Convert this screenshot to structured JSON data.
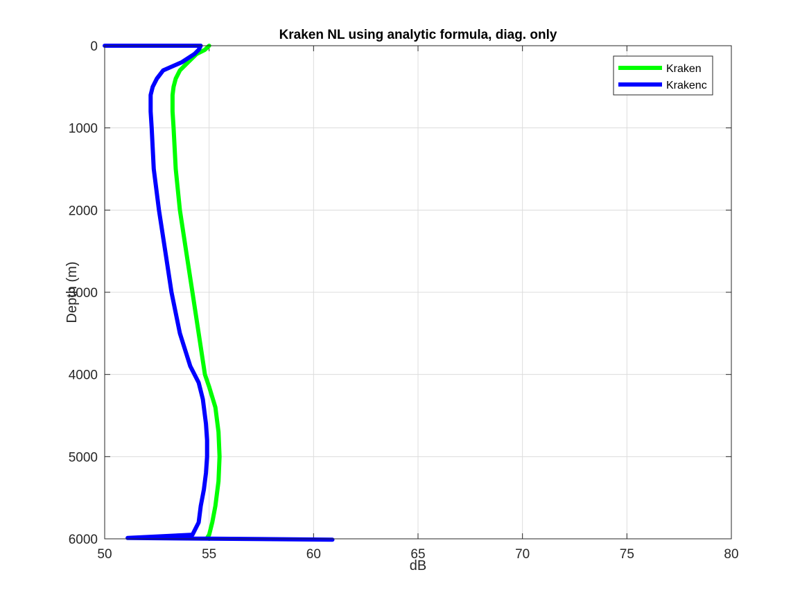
{
  "chart_data": {
    "type": "line",
    "title": "Kraken NL using analytic formula, diag. only",
    "xlabel": "dB",
    "ylabel": "Depth (m)",
    "xlim": [
      50,
      80
    ],
    "ylim": [
      0,
      6000
    ],
    "y_reversed": true,
    "grid": true,
    "legend_position": "top-right",
    "xticks": [
      "50",
      "55",
      "60",
      "65",
      "70",
      "75",
      "80"
    ],
    "yticks": [
      "0",
      "1000",
      "2000",
      "3000",
      "4000",
      "5000",
      "6000"
    ],
    "series": [
      {
        "name": "Kraken",
        "color": "#00ff00",
        "points": [
          [
            55.0,
            0
          ],
          [
            54.8,
            50
          ],
          [
            54.4,
            100
          ],
          [
            54.0,
            200
          ],
          [
            53.6,
            300
          ],
          [
            53.4,
            400
          ],
          [
            53.3,
            500
          ],
          [
            53.25,
            600
          ],
          [
            53.25,
            800
          ],
          [
            53.3,
            1000
          ],
          [
            53.4,
            1500
          ],
          [
            53.6,
            2000
          ],
          [
            53.9,
            2500
          ],
          [
            54.2,
            3000
          ],
          [
            54.5,
            3500
          ],
          [
            54.8,
            4000
          ],
          [
            55.0,
            4150
          ],
          [
            55.3,
            4400
          ],
          [
            55.45,
            4700
          ],
          [
            55.5,
            5000
          ],
          [
            55.45,
            5300
          ],
          [
            55.3,
            5600
          ],
          [
            55.15,
            5800
          ],
          [
            55.0,
            5950
          ],
          [
            54.9,
            5990
          ],
          [
            55.0,
            6000
          ]
        ]
      },
      {
        "name": "Krakenc",
        "color": "#0000ff",
        "points": [
          [
            50.0,
            0
          ],
          [
            54.6,
            0
          ],
          [
            54.5,
            50
          ],
          [
            54.3,
            100
          ],
          [
            53.7,
            200
          ],
          [
            52.8,
            300
          ],
          [
            52.5,
            400
          ],
          [
            52.3,
            500
          ],
          [
            52.2,
            600
          ],
          [
            52.2,
            800
          ],
          [
            52.25,
            1000
          ],
          [
            52.35,
            1500
          ],
          [
            52.6,
            2000
          ],
          [
            52.9,
            2500
          ],
          [
            53.2,
            3000
          ],
          [
            53.6,
            3500
          ],
          [
            54.1,
            3900
          ],
          [
            54.5,
            4100
          ],
          [
            54.7,
            4300
          ],
          [
            54.85,
            4600
          ],
          [
            54.9,
            4800
          ],
          [
            54.9,
            5000
          ],
          [
            54.85,
            5200
          ],
          [
            54.75,
            5400
          ],
          [
            54.6,
            5600
          ],
          [
            54.5,
            5800
          ],
          [
            54.2,
            5950
          ],
          [
            51.1,
            5990
          ],
          [
            60.9,
            6010
          ]
        ]
      }
    ]
  }
}
